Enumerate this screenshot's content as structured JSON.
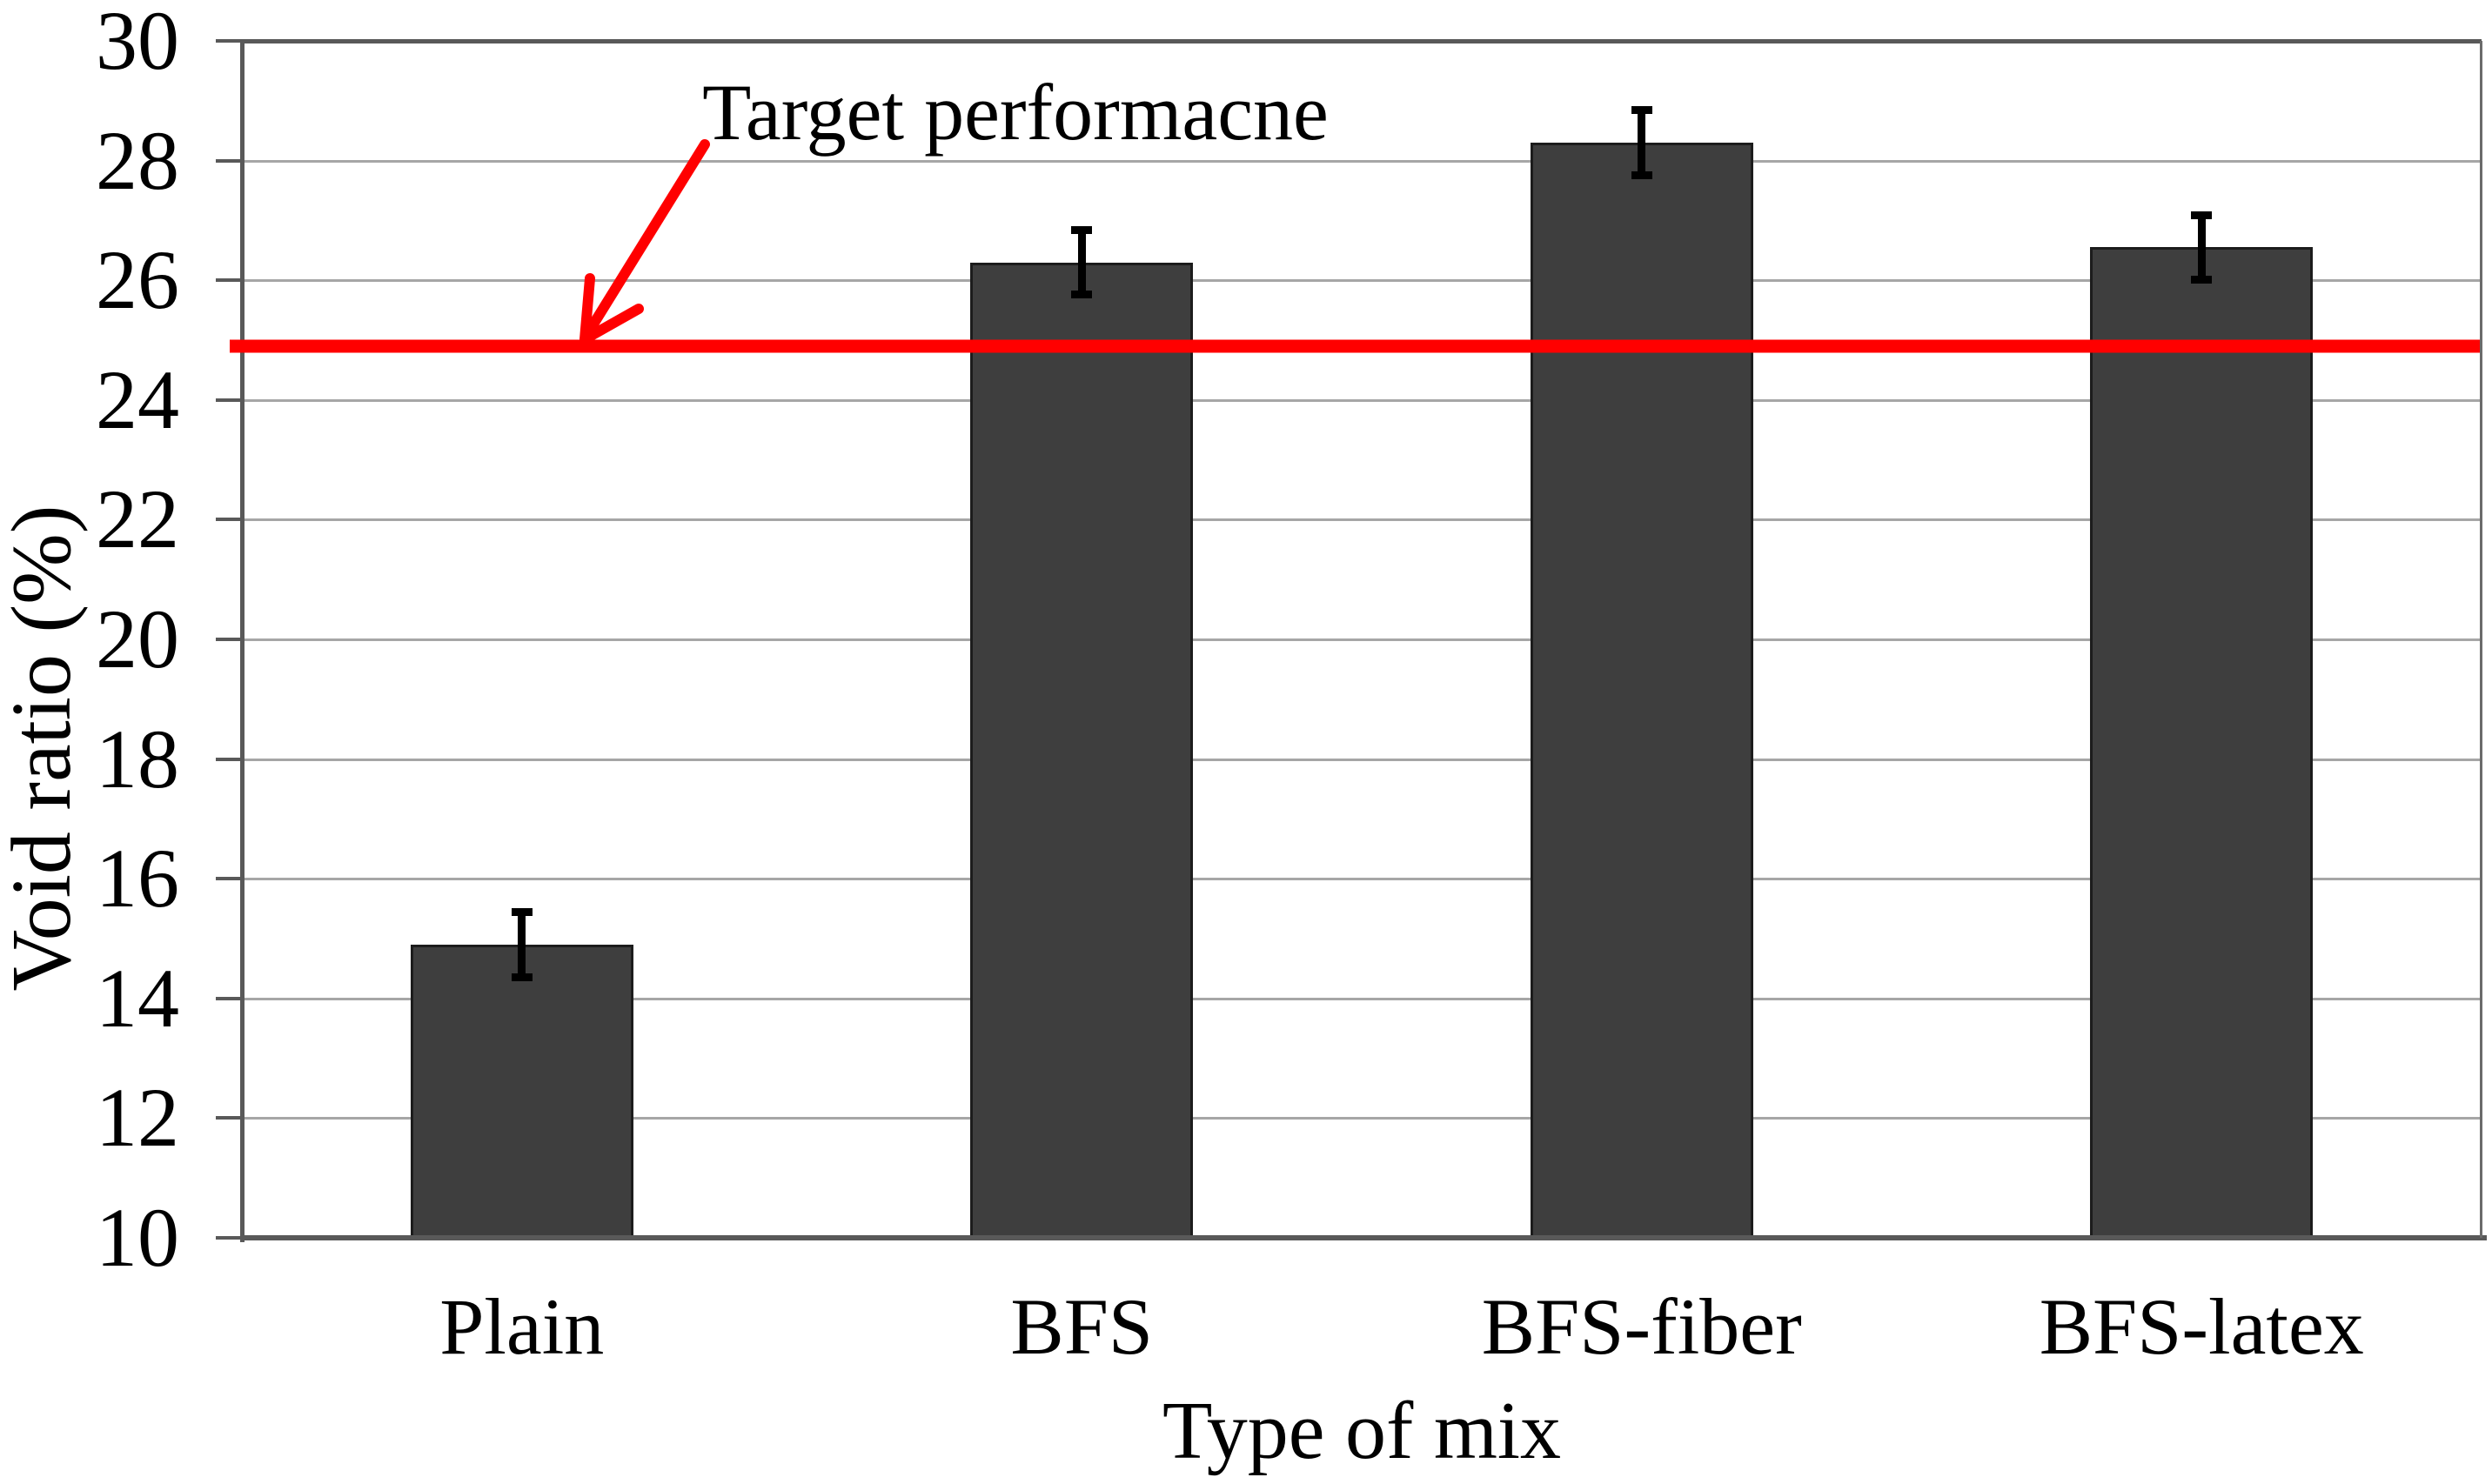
{
  "chart_data": {
    "type": "bar",
    "title": "",
    "categories": [
      "Plain",
      "BFS",
      "BFS-fiber",
      "BFS-latex"
    ],
    "values": [
      14.9,
      26.3,
      28.3,
      26.55
    ],
    "error_bars": [
      0.55,
      0.55,
      0.55,
      0.55
    ],
    "xlabel": "Type of mix",
    "ylabel": "Void ratio (%)",
    "ylim": [
      10,
      30
    ],
    "yticks": [
      10,
      12,
      14,
      16,
      18,
      20,
      22,
      24,
      26,
      28,
      30
    ],
    "grid": "horizontal-light",
    "legend": "none",
    "target_line": {
      "label": "Target performacne",
      "value": 25,
      "drawn_y": 24.9,
      "color": "#ff0000"
    },
    "bar_color": "#3e3e3e",
    "bar_border_color": "#1c1c1c",
    "error_bar_color": "#000000",
    "gridline_color": "#a6a6a6",
    "axis_color": "#595959",
    "text_color": "#000000",
    "background_color": "#ffffff"
  }
}
